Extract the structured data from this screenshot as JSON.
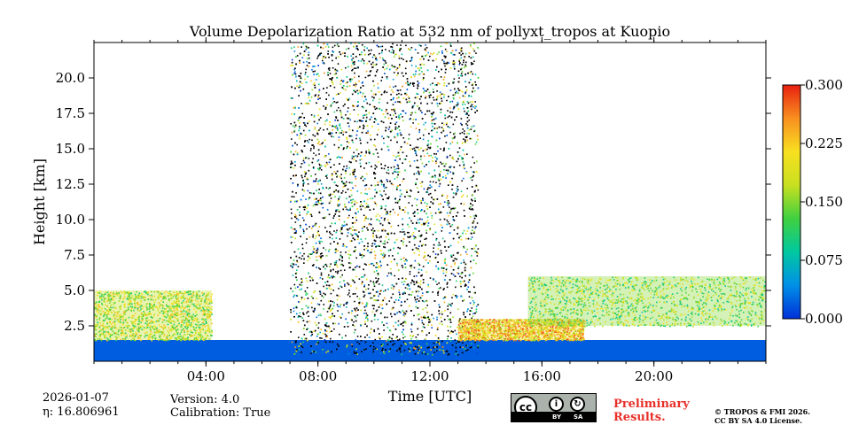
{
  "chart_data": {
    "type": "heatmap",
    "title": "Volume Depolarization Ratio at 532 nm of pollyxt_tropos at Kuopio",
    "xlabel": "Time [UTC]",
    "ylabel": "Height [km]",
    "xlim": [
      0,
      24
    ],
    "ylim": [
      0,
      22.5
    ],
    "x_ticks": [
      {
        "value": 4,
        "label": "04:00"
      },
      {
        "value": 8,
        "label": "08:00"
      },
      {
        "value": 12,
        "label": "12:00"
      },
      {
        "value": 16,
        "label": "16:00"
      },
      {
        "value": 20,
        "label": "20:00"
      }
    ],
    "y_ticks": [
      {
        "value": 2.5,
        "label": "2.5"
      },
      {
        "value": 5.0,
        "label": "5.0"
      },
      {
        "value": 7.5,
        "label": "7.5"
      },
      {
        "value": 10.0,
        "label": "10.0"
      },
      {
        "value": 12.5,
        "label": "12.5"
      },
      {
        "value": 15.0,
        "label": "15.0"
      },
      {
        "value": 17.5,
        "label": "17.5"
      },
      {
        "value": 20.0,
        "label": "20.0"
      }
    ],
    "colorbar": {
      "min": 0.0,
      "max": 0.3,
      "ticks": [
        "0.000",
        "0.075",
        "0.150",
        "0.225",
        "0.300"
      ],
      "colormap": [
        "#0030d8",
        "#0090e8",
        "#00c8a0",
        "#40d040",
        "#c8e020",
        "#f8e020",
        "#f89020",
        "#e82010"
      ]
    },
    "features": [
      {
        "name": "boundary layer low depol",
        "t_start": 0,
        "t_end": 24,
        "h_top": 1.5,
        "value": 0.02
      },
      {
        "name": "morning aerosol layer",
        "t_start": 0,
        "t_end": 4.2,
        "h_bottom": 1.5,
        "h_top": 5.0,
        "value": 0.17
      },
      {
        "name": "daytime noisy signal",
        "t_start": 7.0,
        "t_end": 13.7,
        "h_bottom": 0.5,
        "h_top": 22.5,
        "value": 0.12
      },
      {
        "name": "afternoon aerosol layer",
        "t_start": 13.0,
        "t_end": 17.5,
        "h_bottom": 1.5,
        "h_top": 3.0,
        "value": 0.22
      },
      {
        "name": "evening aerosol layer",
        "t_start": 15.5,
        "t_end": 24,
        "h_bottom": 2.5,
        "h_top": 6.0,
        "value": 0.15
      }
    ]
  },
  "footer": {
    "date": "2026-01-07",
    "eta": "η: 16.806961",
    "version": "Version: 4.0",
    "calibration": "Calibration: True",
    "preliminary_line1": "Preliminary",
    "preliminary_line2": "Results.",
    "copyright_line1": "© TROPOS & FMI 2026.",
    "copyright_line2": "CC BY SA 4.0 License.",
    "license_badge": {
      "cc": "cc",
      "by": "BY",
      "sa": "SA"
    }
  }
}
